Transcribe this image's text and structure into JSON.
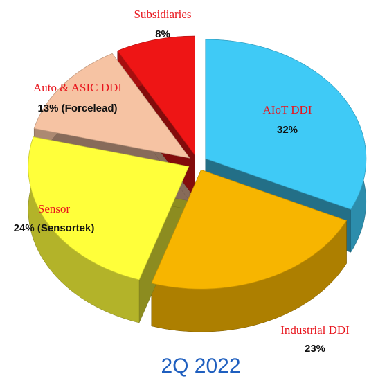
{
  "chart_data": {
    "type": "pie",
    "title": "2Q 2022",
    "categories": [
      "AIoT DDI",
      "Industrial DDI",
      "Sensor",
      "Auto & ASIC DDI",
      "Subsidiaries"
    ],
    "values": [
      32,
      23,
      24,
      13,
      8
    ],
    "value_labels": [
      "32%",
      "23%",
      "24% (Sensortek)",
      "13% (Forcelead)",
      "8%"
    ],
    "colors": [
      "#3fcaf6",
      "#f7b500",
      "#ffff3a",
      "#f6c3a3",
      "#ee1515"
    ]
  }
}
